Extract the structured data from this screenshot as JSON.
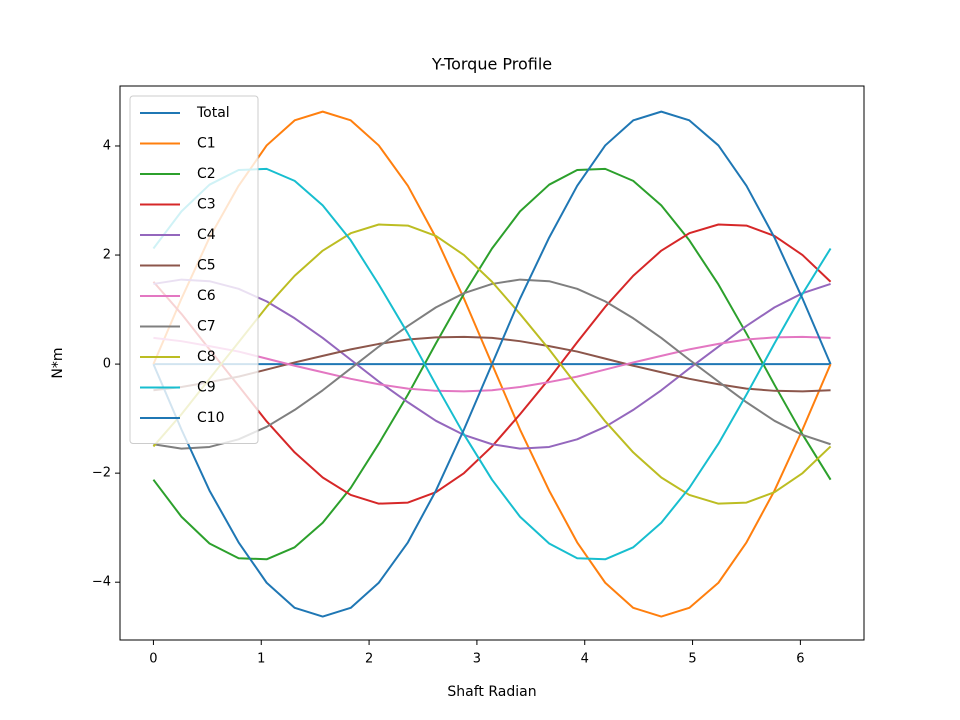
{
  "chart_data": {
    "type": "line",
    "title": "Y-Torque Profile",
    "x_label": "Shaft Radian",
    "y_label": "N*m",
    "x": [
      0,
      0.26,
      0.52,
      0.79,
      1.05,
      1.31,
      1.57,
      1.83,
      2.09,
      2.36,
      2.62,
      2.88,
      3.14,
      3.4,
      3.67,
      3.93,
      4.19,
      4.45,
      4.71,
      4.97,
      5.24,
      5.5,
      5.76,
      6.02,
      6.28
    ],
    "series": [
      {
        "name": "Total",
        "color": "#1f77b4",
        "values": [
          0,
          0,
          0,
          0,
          0,
          0,
          0,
          0,
          0,
          0,
          0,
          0,
          0,
          0,
          0,
          0,
          0,
          0,
          0,
          0,
          0,
          0,
          0,
          0,
          0
        ]
      },
      {
        "name": "C1",
        "color": "#ff7f0e",
        "values": [
          0,
          1.2,
          2.32,
          3.27,
          4.01,
          4.47,
          4.63,
          4.47,
          4.01,
          3.27,
          2.32,
          1.2,
          0,
          -1.2,
          -2.32,
          -3.27,
          -4.01,
          -4.47,
          -4.63,
          -4.47,
          -4.01,
          -3.27,
          -2.32,
          -1.2,
          0
        ]
      },
      {
        "name": "C2",
        "color": "#2ca02c",
        "values": [
          -2.12,
          -2.8,
          -3.29,
          -3.56,
          -3.58,
          -3.36,
          -2.91,
          -2.27,
          -1.46,
          -0.56,
          0.38,
          1.29,
          2.12,
          2.8,
          3.29,
          3.56,
          3.58,
          3.36,
          2.91,
          2.27,
          1.46,
          0.56,
          -0.38,
          -1.29,
          -2.12
        ]
      },
      {
        "name": "C3",
        "color": "#d62728",
        "values": [
          1.51,
          0.92,
          0.27,
          -0.4,
          -1.05,
          -1.62,
          -2.08,
          -2.4,
          -2.56,
          -2.54,
          -2.35,
          -2.0,
          -1.51,
          -0.92,
          -0.27,
          0.4,
          1.05,
          1.62,
          2.08,
          2.4,
          2.56,
          2.54,
          2.35,
          2.0,
          1.51
        ]
      },
      {
        "name": "C4",
        "color": "#9467bd",
        "values": [
          1.47,
          1.55,
          1.52,
          1.38,
          1.15,
          0.84,
          0.48,
          0.08,
          -0.32,
          -0.7,
          -1.04,
          -1.3,
          -1.47,
          -1.55,
          -1.52,
          -1.38,
          -1.15,
          -0.84,
          -0.48,
          -0.08,
          0.32,
          0.7,
          1.04,
          1.3,
          1.47
        ]
      },
      {
        "name": "C5",
        "color": "#8c564b",
        "values": [
          -0.48,
          -0.42,
          -0.33,
          -0.23,
          -0.1,
          0.03,
          0.15,
          0.27,
          0.37,
          0.45,
          0.49,
          0.5,
          0.48,
          0.42,
          0.33,
          0.23,
          0.1,
          -0.03,
          -0.15,
          -0.27,
          -0.37,
          -0.45,
          -0.49,
          -0.5,
          -0.48
        ]
      },
      {
        "name": "C6",
        "color": "#e377c2",
        "values": [
          0.48,
          0.42,
          0.33,
          0.23,
          0.1,
          -0.03,
          -0.15,
          -0.27,
          -0.37,
          -0.45,
          -0.49,
          -0.5,
          -0.48,
          -0.42,
          -0.33,
          -0.23,
          -0.1,
          0.03,
          0.15,
          0.27,
          0.37,
          0.45,
          0.49,
          0.5,
          0.48
        ]
      },
      {
        "name": "C7",
        "color": "#7f7f7f",
        "values": [
          -1.47,
          -1.55,
          -1.52,
          -1.38,
          -1.15,
          -0.84,
          -0.48,
          -0.08,
          0.32,
          0.7,
          1.04,
          1.3,
          1.47,
          1.55,
          1.52,
          1.38,
          1.15,
          0.84,
          0.48,
          0.08,
          -0.32,
          -0.7,
          -1.04,
          -1.3,
          -1.47
        ]
      },
      {
        "name": "C8",
        "color": "#bcbd22",
        "values": [
          -1.51,
          -0.92,
          -0.27,
          0.4,
          1.05,
          1.62,
          2.08,
          2.4,
          2.56,
          2.54,
          2.35,
          2.0,
          1.51,
          0.92,
          0.27,
          -0.4,
          -1.05,
          -1.62,
          -2.08,
          -2.4,
          -2.56,
          -2.54,
          -2.35,
          -2.0,
          -1.51
        ]
      },
      {
        "name": "C9",
        "color": "#17becf",
        "values": [
          2.12,
          2.8,
          3.29,
          3.56,
          3.58,
          3.36,
          2.91,
          2.27,
          1.46,
          0.56,
          -0.38,
          -1.29,
          -2.12,
          -2.8,
          -3.29,
          -3.56,
          -3.58,
          -3.36,
          -2.91,
          -2.27,
          -1.46,
          -0.56,
          0.38,
          1.29,
          2.12
        ]
      },
      {
        "name": "C10",
        "color": "#1f77b4",
        "values": [
          0,
          -1.2,
          -2.32,
          -3.27,
          -4.01,
          -4.47,
          -4.63,
          -4.47,
          -4.01,
          -3.27,
          -2.32,
          -1.2,
          0,
          1.2,
          2.32,
          3.27,
          4.01,
          4.47,
          4.63,
          4.47,
          4.01,
          3.27,
          2.32,
          1.2,
          0
        ]
      }
    ],
    "xlim": [
      -0.31,
      6.59
    ],
    "ylim": [
      -5.06,
      5.1
    ],
    "xticks": [
      0,
      1,
      2,
      3,
      4,
      5,
      6
    ],
    "yticks": [
      {
        "value": -4,
        "label": "−4"
      },
      {
        "value": -2,
        "label": "−2"
      },
      0,
      2,
      4
    ],
    "grid": false,
    "legend": "upper left"
  }
}
